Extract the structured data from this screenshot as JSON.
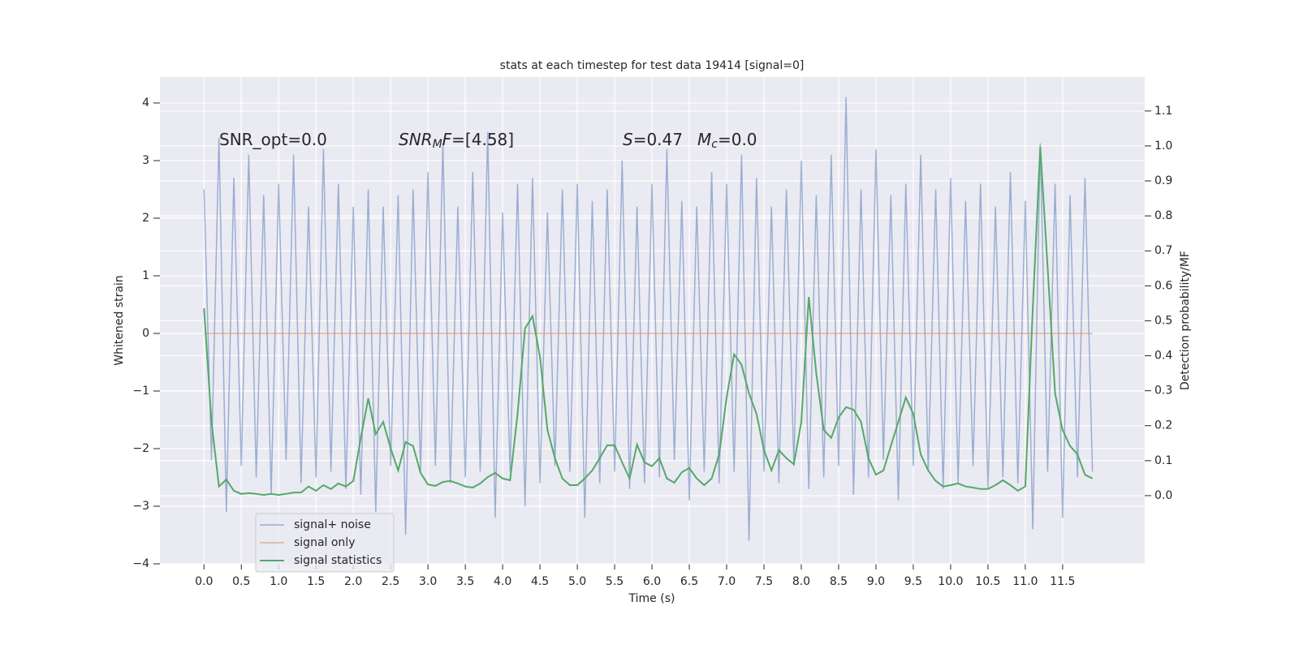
{
  "chart_data": {
    "type": "line",
    "title": "stats at each timestep for test data 19414 [signal=0]",
    "xlabel": "Time (s)",
    "ylabel": "Whitened strain",
    "y2label": "Detection probability/MF",
    "annotations": [
      [
        {
          "text": "SNR_opt=0.0"
        }
      ],
      [
        {
          "text": "SNR",
          "italic": true
        },
        {
          "text": "M",
          "italic": true,
          "sub": true
        },
        {
          "text": "F",
          "italic": true
        },
        {
          "text": "=[4.58]"
        }
      ],
      [
        {
          "text": "S",
          "italic": true
        },
        {
          "text": "=0.47"
        }
      ],
      [
        {
          "text": "M",
          "italic": true
        },
        {
          "text": "c",
          "italic": true,
          "sub": true
        },
        {
          "text": "=0.0"
        }
      ]
    ],
    "x": [
      0,
      0.1,
      0.2,
      0.3,
      0.4,
      0.5,
      0.6,
      0.7,
      0.8,
      0.9,
      1,
      1.1,
      1.2,
      1.3,
      1.4,
      1.5,
      1.6,
      1.7,
      1.8,
      1.9,
      2,
      2.1,
      2.2,
      2.3,
      2.4,
      2.5,
      2.6,
      2.7,
      2.8,
      2.9,
      3,
      3.1,
      3.2,
      3.3,
      3.4,
      3.5,
      3.6,
      3.7,
      3.8,
      3.9,
      4,
      4.1,
      4.2,
      4.3,
      4.4,
      4.5,
      4.6,
      4.7,
      4.8,
      4.9,
      5,
      5.1,
      5.2,
      5.3,
      5.4,
      5.5,
      5.6,
      5.7,
      5.8,
      5.9,
      6,
      6.1,
      6.2,
      6.3,
      6.4,
      6.5,
      6.6,
      6.7,
      6.8,
      6.9,
      7,
      7.1,
      7.2,
      7.3,
      7.4,
      7.5,
      7.6,
      7.7,
      7.8,
      7.9,
      8,
      8.1,
      8.2,
      8.3,
      8.4,
      8.5,
      8.6,
      8.7,
      8.8,
      8.9,
      9,
      9.1,
      9.2,
      9.3,
      9.4,
      9.5,
      9.6,
      9.7,
      9.8,
      9.9,
      10,
      10.1,
      10.2,
      10.3,
      10.4,
      10.5,
      10.6,
      10.7,
      10.8,
      10.9,
      11,
      11.1,
      11.2,
      11.3,
      11.4,
      11.5,
      11.6,
      11.7,
      11.8,
      11.9
    ],
    "series": [
      {
        "name": "signal+ noise",
        "color": "#4c72b0",
        "axis": "y",
        "values": [
          2.5,
          -2.2,
          3.4,
          -3.1,
          2.7,
          -2.3,
          3.1,
          -2.5,
          2.4,
          -2.8,
          2.6,
          -2.2,
          3.1,
          -2.6,
          2.2,
          -2.5,
          3.2,
          -2.4,
          2.6,
          -2.7,
          2.2,
          -2.8,
          2.5,
          -3.1,
          2.2,
          -2.3,
          2.4,
          -3.5,
          2.5,
          -2.4,
          2.8,
          -2.3,
          3.3,
          -2.6,
          2.2,
          -2.5,
          2.8,
          -2.4,
          3.5,
          -3.2,
          2.1,
          -2.4,
          2.6,
          -3.0,
          2.7,
          -2.6,
          2.1,
          -2.3,
          2.5,
          -2.4,
          2.6,
          -3.2,
          2.3,
          -2.6,
          2.5,
          -2.4,
          3.0,
          -2.7,
          2.2,
          -2.6,
          2.6,
          -2.5,
          3.2,
          -2.2,
          2.3,
          -2.9,
          2.2,
          -2.4,
          2.8,
          -2.6,
          2.6,
          -2.4,
          3.1,
          -3.6,
          2.7,
          -2.4,
          2.2,
          -2.6,
          2.5,
          -2.3,
          3.0,
          -2.7,
          2.4,
          -2.5,
          3.1,
          -2.3,
          4.1,
          -2.8,
          2.5,
          -2.5,
          3.2,
          -2.2,
          2.4,
          -2.9,
          2.6,
          -2.3,
          3.1,
          -2.4,
          2.5,
          -2.7,
          2.7,
          -2.6,
          2.3,
          -2.3,
          2.6,
          -2.7,
          2.2,
          -2.5,
          2.8,
          -2.6,
          2.3,
          -3.4,
          3.3,
          -2.4,
          2.6,
          -3.2,
          2.4,
          -2.5,
          2.7,
          -2.4
        ]
      },
      {
        "name": "signal only",
        "color": "#dd8452",
        "axis": "y",
        "values": [
          0,
          0,
          0,
          0,
          0,
          0,
          0,
          0,
          0,
          0,
          0,
          0,
          0,
          0,
          0,
          0,
          0,
          0,
          0,
          0,
          0,
          0,
          0,
          0,
          0,
          0,
          0,
          0,
          0,
          0,
          0,
          0,
          0,
          0,
          0,
          0,
          0,
          0,
          0,
          0,
          0,
          0,
          0,
          0,
          0,
          0,
          0,
          0,
          0,
          0,
          0,
          0,
          0,
          0,
          0,
          0,
          0,
          0,
          0,
          0,
          0,
          0,
          0,
          0,
          0,
          0,
          0,
          0,
          0,
          0,
          0,
          0,
          0,
          0,
          0,
          0,
          0,
          0,
          0,
          0,
          0,
          0,
          0,
          0,
          0,
          0,
          0,
          0,
          0,
          0,
          0,
          0,
          0,
          0,
          0,
          0,
          0,
          0,
          0,
          0,
          0,
          0,
          0,
          0,
          0,
          0,
          0,
          0,
          0,
          0,
          0,
          0,
          0,
          0,
          0,
          0,
          0,
          0,
          0,
          0
        ]
      },
      {
        "name": "signal statistics",
        "color": "#55a868",
        "axis": "y2",
        "values": [
          0.536,
          0.211,
          0.026,
          0.046,
          0.014,
          0.005,
          0.007,
          0.005,
          0.002,
          0.005,
          0.002,
          0.005,
          0.009,
          0.009,
          0.026,
          0.014,
          0.03,
          0.019,
          0.035,
          0.026,
          0.042,
          0.165,
          0.278,
          0.176,
          0.211,
          0.135,
          0.072,
          0.153,
          0.142,
          0.065,
          0.032,
          0.028,
          0.039,
          0.042,
          0.035,
          0.026,
          0.023,
          0.035,
          0.053,
          0.065,
          0.049,
          0.044,
          0.234,
          0.478,
          0.513,
          0.397,
          0.188,
          0.107,
          0.049,
          0.03,
          0.03,
          0.049,
          0.072,
          0.107,
          0.144,
          0.144,
          0.095,
          0.049,
          0.146,
          0.095,
          0.084,
          0.107,
          0.049,
          0.037,
          0.067,
          0.079,
          0.049,
          0.03,
          0.049,
          0.118,
          0.281,
          0.404,
          0.374,
          0.292,
          0.234,
          0.13,
          0.072,
          0.13,
          0.107,
          0.09,
          0.211,
          0.568,
          0.35,
          0.188,
          0.165,
          0.223,
          0.253,
          0.246,
          0.211,
          0.107,
          0.06,
          0.072,
          0.142,
          0.211,
          0.281,
          0.234,
          0.118,
          0.072,
          0.042,
          0.026,
          0.03,
          0.035,
          0.026,
          0.023,
          0.019,
          0.019,
          0.03,
          0.044,
          0.03,
          0.014,
          0.026,
          0.536,
          0.998,
          0.652,
          0.292,
          0.188,
          0.142,
          0.118,
          0.06,
          0.049
        ]
      }
    ],
    "xlim": [
      -0.59,
      12.6
    ],
    "ylim": [
      -4.0,
      4.45
    ],
    "y2lim": [
      -0.195,
      1.197
    ],
    "xticks": [
      {
        "value": 0,
        "label": "0.0"
      },
      0.5,
      {
        "value": 1,
        "label": "1.0"
      },
      1.5,
      {
        "value": 2,
        "label": "2.0"
      },
      2.5,
      {
        "value": 3,
        "label": "3.0"
      },
      3.5,
      {
        "value": 4,
        "label": "4.0"
      },
      4.5,
      {
        "value": 5,
        "label": "5.0"
      },
      5.5,
      {
        "value": 6,
        "label": "6.0"
      },
      6.5,
      {
        "value": 7,
        "label": "7.0"
      },
      7.5,
      {
        "value": 8,
        "label": "8.0"
      },
      8.5,
      {
        "value": 9,
        "label": "9.0"
      },
      9.5,
      {
        "value": 10,
        "label": "10.0"
      },
      10.5,
      {
        "value": 11,
        "label": "11.0"
      },
      11.5
    ],
    "yticks": [
      {
        "value": -4,
        "label": "−4"
      },
      {
        "value": -3,
        "label": "−3"
      },
      {
        "value": -2,
        "label": "−2"
      },
      {
        "value": -1,
        "label": "−1"
      },
      0,
      1,
      2,
      3,
      4
    ],
    "y2ticks": [
      {
        "value": 0,
        "label": "0.0"
      },
      0.1,
      0.2,
      0.3,
      0.4,
      0.5,
      0.6,
      0.7,
      0.8,
      0.9,
      {
        "value": 1,
        "label": "1.0"
      },
      1.1
    ],
    "grid": true,
    "legend_loc": "lower left"
  }
}
